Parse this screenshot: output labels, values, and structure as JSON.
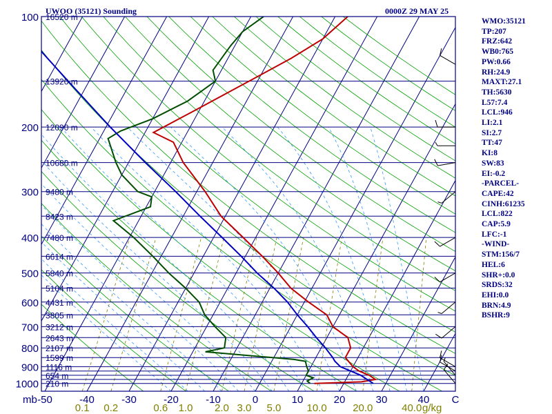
{
  "header": {
    "title": "UWOO (35121) Sounding",
    "time": "0000Z 29 MAY 25"
  },
  "stats": [
    "WMO:35121",
    "TP:207",
    "FRZ:642",
    "WB0:765",
    "PW:0.66",
    "RH:24.9",
    "MAXT:27.1",
    "TH:5630",
    "L57:7.4",
    "LCL:946",
    "LI:2.1",
    "SI:2.7",
    "TT:47",
    "KI:8",
    "SW:83",
    "EI:-0.2",
    "-PARCEL-",
    "CAPE:42",
    "CINH:61235",
    "LCL:822",
    "CAP:5.9",
    "LFC:-1",
    "-WIND-",
    "STM:156/7",
    "HEL:6",
    "SHR+:0.0",
    "SRDS:32",
    "EHI:0.0",
    "BRN:4.9",
    "BSHR:9"
  ],
  "chart_data": {
    "type": "line",
    "subtype": "skew-T log-P sounding",
    "colors": {
      "frame": "#000080",
      "isotherm": "#000080",
      "dry_adiabat": "#00a000",
      "moist_adiabat": "#3399ff",
      "mixing_ratio": "#808000",
      "temperature": "#c00000",
      "dewpoint": "#004d00",
      "parcel": "#0000c0"
    },
    "pressure_axis": {
      "unit": "mb",
      "ticks": [
        "100",
        "200",
        "300",
        "400",
        "500",
        "600",
        "700",
        "800",
        "900",
        "1000"
      ],
      "lines": [
        100,
        150,
        200,
        250,
        300,
        350,
        400,
        450,
        500,
        550,
        600,
        650,
        700,
        750,
        800,
        850,
        900,
        925,
        950,
        975,
        1000
      ]
    },
    "height_labels": [
      {
        "p": 100,
        "text": "16520 m"
      },
      {
        "p": 150,
        "text": "13920 m"
      },
      {
        "p": 200,
        "text": "12090 m"
      },
      {
        "p": 250,
        "text": "10680 m"
      },
      {
        "p": 300,
        "text": "9480 m"
      },
      {
        "p": 350,
        "text": "8423 m"
      },
      {
        "p": 400,
        "text": "7480 m"
      },
      {
        "p": 450,
        "text": "6614 m"
      },
      {
        "p": 500,
        "text": "5840 m"
      },
      {
        "p": 550,
        "text": "5104 m"
      },
      {
        "p": 600,
        "text": "4431 m"
      },
      {
        "p": 650,
        "text": "3805 m"
      },
      {
        "p": 700,
        "text": "3212 m"
      },
      {
        "p": 750,
        "text": "2643 m"
      },
      {
        "p": 800,
        "text": "2107 m"
      },
      {
        "p": 850,
        "text": "1599 m"
      },
      {
        "p": 900,
        "text": "1116 m"
      },
      {
        "p": 950,
        "text": "654 m"
      },
      {
        "p": 1000,
        "text": "210 m"
      }
    ],
    "temperature_axis": {
      "unit": "C",
      "ticks": [
        {
          "value": -50,
          "text": "-50"
        },
        {
          "value": -40,
          "text": "-40"
        },
        {
          "value": -30,
          "text": "-30"
        },
        {
          "value": -20,
          "text": "-20"
        },
        {
          "value": -10,
          "text": "-10"
        },
        {
          "value": 0,
          "text": "0"
        },
        {
          "value": 10,
          "text": "10"
        },
        {
          "value": 20,
          "text": "20"
        },
        {
          "value": 30,
          "text": "30"
        },
        {
          "value": 40,
          "text": "40"
        }
      ],
      "range": [
        -50,
        50
      ]
    },
    "mixing_ratio_axis": {
      "unit": "g/kg",
      "ticks": [
        "0.1",
        "0.2",
        "0.6",
        "1.0",
        "2.0",
        "3.0",
        "5.0",
        "10.0",
        "20.0",
        "40.0"
      ],
      "values": [
        0.1,
        0.2,
        0.6,
        1.0,
        2.0,
        3.0,
        5.0,
        10.0,
        20.0,
        40.0
      ]
    },
    "series": [
      {
        "key": "temperature",
        "points": [
          [
            1000,
            13
          ],
          [
            990,
            24
          ],
          [
            975,
            27
          ],
          [
            950,
            25
          ],
          [
            925,
            22
          ],
          [
            900,
            20
          ],
          [
            850,
            17
          ],
          [
            800,
            17
          ],
          [
            750,
            15
          ],
          [
            700,
            10
          ],
          [
            650,
            7
          ],
          [
            600,
            1
          ],
          [
            550,
            -5
          ],
          [
            500,
            -10
          ],
          [
            450,
            -16
          ],
          [
            400,
            -23
          ],
          [
            350,
            -31
          ],
          [
            300,
            -38
          ],
          [
            250,
            -47
          ],
          [
            220,
            -52
          ],
          [
            207,
            -58
          ],
          [
            180,
            -51
          ],
          [
            150,
            -42
          ],
          [
            130,
            -35
          ],
          [
            115,
            -30
          ],
          [
            100,
            -27
          ]
        ]
      },
      {
        "key": "dewpoint",
        "points": [
          [
            1000,
            12
          ],
          [
            985,
            11
          ],
          [
            965,
            12
          ],
          [
            950,
            10
          ],
          [
            925,
            10
          ],
          [
            900,
            9
          ],
          [
            870,
            8
          ],
          [
            860,
            5
          ],
          [
            820,
            -17
          ],
          [
            800,
            -13
          ],
          [
            750,
            -14
          ],
          [
            700,
            -18
          ],
          [
            650,
            -22
          ],
          [
            600,
            -25
          ],
          [
            550,
            -30
          ],
          [
            500,
            -36
          ],
          [
            450,
            -42
          ],
          [
            400,
            -49
          ],
          [
            360,
            -56
          ],
          [
            330,
            -49
          ],
          [
            310,
            -50
          ],
          [
            300,
            -54
          ],
          [
            270,
            -60
          ],
          [
            250,
            -63
          ],
          [
            215,
            -68
          ],
          [
            205,
            -66
          ],
          [
            190,
            -60
          ],
          [
            170,
            -54
          ],
          [
            150,
            -50
          ],
          [
            140,
            -52
          ],
          [
            120,
            -51
          ],
          [
            110,
            -50
          ],
          [
            100,
            -47
          ]
        ]
      },
      {
        "key": "parcel",
        "points": [
          [
            1000,
            27
          ],
          [
            975,
            25
          ],
          [
            950,
            23
          ],
          [
            925,
            20
          ],
          [
            900,
            17
          ],
          [
            870,
            15
          ],
          [
            850,
            14
          ],
          [
            800,
            11
          ],
          [
            750,
            7.5
          ],
          [
            700,
            4
          ],
          [
            650,
            0
          ],
          [
            600,
            -4
          ],
          [
            550,
            -9
          ],
          [
            500,
            -15
          ],
          [
            450,
            -21
          ],
          [
            400,
            -28
          ],
          [
            350,
            -36
          ],
          [
            300,
            -45
          ],
          [
            250,
            -56
          ],
          [
            200,
            -69
          ],
          [
            150,
            -85
          ],
          [
            125,
            -95
          ],
          [
            100,
            -104
          ]
        ]
      }
    ],
    "wind_barbs": [
      {
        "p": 135,
        "dir": 300,
        "kt": 10
      },
      {
        "p": 200,
        "dir": 270,
        "kt": 10
      },
      {
        "p": 225,
        "dir": 270,
        "kt": 5
      },
      {
        "p": 250,
        "dir": 260,
        "kt": 10
      },
      {
        "p": 300,
        "dir": 230,
        "kt": 5
      },
      {
        "p": 400,
        "dir": 240,
        "kt": 10
      },
      {
        "p": 500,
        "dir": 240,
        "kt": 10
      },
      {
        "p": 600,
        "dir": 230,
        "kt": 5
      },
      {
        "p": 700,
        "dir": 230,
        "kt": 10
      },
      {
        "p": 900,
        "dir": 300,
        "kt": 10
      },
      {
        "p": 925,
        "dir": 300,
        "kt": 10
      },
      {
        "p": 950,
        "dir": 320,
        "kt": 5
      },
      {
        "p": 1000,
        "dir": 320,
        "kt": 10
      }
    ]
  }
}
